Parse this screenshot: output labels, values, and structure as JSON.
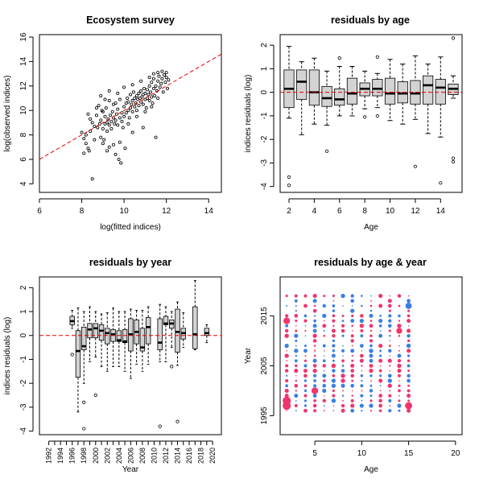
{
  "chart_data": [
    {
      "id": "p1",
      "type": "scatter",
      "title": "Ecosystem survey",
      "xlabel": "log(fitted indices)",
      "ylabel": "log(observed indices)",
      "xlim": [
        6,
        14.6
      ],
      "ylim": [
        3.3,
        16.2
      ],
      "xticks": [
        6,
        8,
        10,
        12,
        14
      ],
      "yticks": [
        4,
        6,
        8,
        10,
        12,
        14,
        16
      ],
      "reference_line": {
        "intercept": 0,
        "slope": 1,
        "style": "dashed",
        "color": "#e00000"
      },
      "points": [
        [
          8.0,
          8.2
        ],
        [
          8.1,
          7.7
        ],
        [
          8.2,
          7.3
        ],
        [
          8.3,
          6.9
        ],
        [
          8.35,
          6.7
        ],
        [
          8.2,
          8.0
        ],
        [
          8.4,
          8.3
        ],
        [
          8.5,
          4.4
        ],
        [
          8.5,
          9.0
        ],
        [
          8.6,
          8.7
        ],
        [
          8.7,
          9.6
        ],
        [
          8.75,
          8.6
        ],
        [
          8.8,
          10.4
        ],
        [
          8.85,
          8.9
        ],
        [
          8.9,
          9.2
        ],
        [
          8.9,
          7.8
        ],
        [
          8.95,
          10.0
        ],
        [
          9.0,
          8.5
        ],
        [
          9.0,
          9.9
        ],
        [
          9.05,
          7.6
        ],
        [
          9.1,
          8.9
        ],
        [
          9.1,
          9.5
        ],
        [
          9.15,
          10.2
        ],
        [
          9.2,
          8.3
        ],
        [
          9.2,
          9.0
        ],
        [
          9.2,
          6.7
        ],
        [
          9.25,
          9.3
        ],
        [
          9.3,
          8.8
        ],
        [
          9.3,
          10.8
        ],
        [
          9.35,
          9.6
        ],
        [
          9.4,
          8.5
        ],
        [
          9.4,
          9.1
        ],
        [
          9.45,
          9.9
        ],
        [
          9.5,
          7.2
        ],
        [
          9.5,
          9.4
        ],
        [
          9.5,
          10.5
        ],
        [
          9.55,
          8.9
        ],
        [
          9.6,
          9.2
        ],
        [
          9.6,
          6.4
        ],
        [
          9.65,
          9.7
        ],
        [
          9.7,
          10.1
        ],
        [
          9.7,
          8.8
        ],
        [
          9.75,
          6.0
        ],
        [
          9.8,
          9.4
        ],
        [
          9.8,
          10.9
        ],
        [
          9.85,
          5.7
        ],
        [
          9.9,
          9.1
        ],
        [
          9.9,
          9.8
        ],
        [
          9.95,
          8.6
        ],
        [
          10.0,
          10.3
        ],
        [
          10.0,
          9.5
        ],
        [
          10.05,
          6.9
        ],
        [
          10.1,
          10.6
        ],
        [
          10.1,
          9.8
        ],
        [
          10.15,
          11.0
        ],
        [
          10.2,
          10.0
        ],
        [
          10.2,
          10.7
        ],
        [
          10.25,
          9.4
        ],
        [
          10.3,
          10.2
        ],
        [
          10.3,
          11.3
        ],
        [
          10.35,
          10.5
        ],
        [
          10.4,
          9.9
        ],
        [
          10.4,
          10.8
        ],
        [
          10.45,
          11.5
        ],
        [
          10.5,
          10.3
        ],
        [
          10.5,
          11.0
        ],
        [
          10.55,
          10.6
        ],
        [
          10.6,
          11.2
        ],
        [
          10.6,
          10.0
        ],
        [
          10.65,
          10.9
        ],
        [
          10.7,
          11.4
        ],
        [
          10.7,
          10.4
        ],
        [
          10.75,
          11.0
        ],
        [
          10.8,
          10.7
        ],
        [
          10.8,
          11.6
        ],
        [
          10.85,
          11.1
        ],
        [
          10.9,
          10.5
        ],
        [
          10.9,
          11.3
        ],
        [
          10.95,
          11.8
        ],
        [
          11.0,
          10.9
        ],
        [
          11.0,
          11.4
        ],
        [
          11.05,
          10.2
        ],
        [
          11.1,
          11.0
        ],
        [
          11.1,
          11.7
        ],
        [
          11.15,
          11.3
        ],
        [
          11.2,
          10.8
        ],
        [
          11.2,
          12.0
        ],
        [
          11.25,
          11.5
        ],
        [
          11.3,
          11.1
        ],
        [
          11.3,
          12.3
        ],
        [
          11.35,
          10.6
        ],
        [
          11.4,
          11.8
        ],
        [
          11.4,
          12.6
        ],
        [
          11.45,
          11.2
        ],
        [
          11.5,
          12.0
        ],
        [
          11.5,
          7.8
        ],
        [
          11.55,
          11.6
        ],
        [
          11.6,
          12.4
        ],
        [
          11.6,
          11.0
        ],
        [
          11.65,
          12.8
        ],
        [
          11.7,
          11.9
        ],
        [
          11.75,
          12.2
        ],
        [
          11.8,
          12.6
        ],
        [
          11.85,
          11.5
        ],
        [
          11.9,
          12.9
        ],
        [
          11.95,
          12.3
        ],
        [
          12.0,
          12.7
        ],
        [
          12.05,
          11.8
        ],
        [
          12.1,
          12.5
        ],
        [
          11.4,
          13.0
        ],
        [
          11.6,
          13.1
        ],
        [
          11.8,
          13.2
        ],
        [
          12.0,
          13.1
        ],
        [
          11.2,
          12.7
        ],
        [
          10.8,
          12.4
        ],
        [
          10.4,
          12.1
        ],
        [
          10.0,
          11.9
        ],
        [
          9.7,
          11.4
        ],
        [
          9.3,
          11.6
        ],
        [
          9.1,
          10.9
        ],
        [
          8.7,
          10.2
        ],
        [
          8.4,
          9.3
        ],
        [
          8.3,
          9.7
        ],
        [
          8.9,
          11.2
        ],
        [
          9.6,
          10.6
        ],
        [
          10.2,
          8.9
        ],
        [
          10.6,
          9.5
        ],
        [
          11.0,
          9.9
        ],
        [
          11.3,
          10.3
        ],
        [
          9.0,
          7.3
        ],
        [
          9.3,
          7.0
        ],
        [
          9.8,
          7.4
        ],
        [
          10.4,
          8.2
        ],
        [
          10.9,
          8.6
        ],
        [
          8.6,
          7.6
        ],
        [
          8.1,
          6.5
        ]
      ]
    },
    {
      "id": "p2",
      "type": "box",
      "title": "residuals by age",
      "xlabel": "Age",
      "ylabel": "indices residuals (log)",
      "xlim": [
        1.3,
        15.7
      ],
      "ylim": [
        -4.25,
        2.45
      ],
      "xticks": [
        2,
        4,
        6,
        8,
        10,
        12,
        14
      ],
      "yticks": [
        -4,
        -3,
        -2,
        -1,
        0,
        1,
        2
      ],
      "reference_line": {
        "y": 0,
        "style": "dashed",
        "color": "#e00000"
      },
      "boxes": [
        {
          "x": 2,
          "min": -1.1,
          "q1": -0.65,
          "med": 0.15,
          "q3": 0.95,
          "max": 1.95,
          "out": [
            -3.6,
            -3.95
          ]
        },
        {
          "x": 3,
          "min": -1.8,
          "q1": -0.3,
          "med": 0.45,
          "q3": 0.95,
          "max": 1.3,
          "out": []
        },
        {
          "x": 4,
          "min": -1.35,
          "q1": -0.55,
          "med": 0.0,
          "q3": 0.95,
          "max": 1.45,
          "out": []
        },
        {
          "x": 5,
          "min": -1.4,
          "q1": -0.6,
          "med": -0.25,
          "q3": 0.25,
          "max": 0.9,
          "out": [
            -2.5
          ]
        },
        {
          "x": 6,
          "min": -1.0,
          "q1": -0.55,
          "med": -0.3,
          "q3": 0.15,
          "max": 1.1,
          "out": [
            1.45
          ]
        },
        {
          "x": 7,
          "min": -1.0,
          "q1": -0.5,
          "med": -0.05,
          "q3": 0.6,
          "max": 1.1,
          "out": []
        },
        {
          "x": 8,
          "min": -0.7,
          "q1": -0.15,
          "med": 0.15,
          "q3": 0.4,
          "max": 0.9,
          "out": [
            -1.05
          ]
        },
        {
          "x": 9,
          "min": -0.65,
          "q1": -0.15,
          "med": 0.15,
          "q3": 0.55,
          "max": 0.8,
          "out": [
            1.5,
            -1.0
          ]
        },
        {
          "x": 10,
          "min": -1.2,
          "q1": -0.5,
          "med": -0.05,
          "q3": 0.6,
          "max": 1.4,
          "out": []
        },
        {
          "x": 11,
          "min": -1.35,
          "q1": -0.45,
          "med": -0.05,
          "q3": 0.45,
          "max": 1.2,
          "out": []
        },
        {
          "x": 12,
          "min": -1.15,
          "q1": -0.5,
          "med": -0.05,
          "q3": 0.5,
          "max": 1.55,
          "out": [
            -3.15
          ]
        },
        {
          "x": 13,
          "min": -1.75,
          "q1": -0.5,
          "med": 0.3,
          "q3": 0.7,
          "max": 1.2,
          "out": []
        },
        {
          "x": 14,
          "min": -1.9,
          "q1": -0.5,
          "med": 0.2,
          "q3": 0.55,
          "max": 1.5,
          "out": [
            -3.85
          ]
        },
        {
          "x": 15,
          "min": -0.25,
          "q1": -0.1,
          "med": 0.15,
          "q3": 0.35,
          "max": 0.7,
          "out": [
            2.3,
            -2.8,
            -2.95
          ]
        }
      ]
    },
    {
      "id": "p3",
      "type": "box",
      "title": "residuals by year",
      "xlabel": "Year",
      "ylabel": "indices residuals (log)",
      "xlim": [
        1990.4,
        2021.5
      ],
      "ylim": [
        -4.15,
        2.45
      ],
      "xticks": [
        1992,
        1993,
        1994,
        1995,
        1996,
        1997,
        1998,
        1999,
        2000,
        2001,
        2002,
        2003,
        2004,
        2005,
        2006,
        2007,
        2008,
        2009,
        2010,
        2011,
        2012,
        2013,
        2014,
        2015,
        2016,
        2017,
        2018,
        2019,
        2020
      ],
      "xticklabels_shown": [
        1992,
        1994,
        1996,
        1998,
        2000,
        2002,
        2004,
        2006,
        2008,
        2010,
        2012,
        2014,
        2016,
        2018,
        2020
      ],
      "yticks": [
        -4,
        -3,
        -2,
        -1,
        0,
        1,
        2
      ],
      "reference_line": {
        "y": 0,
        "style": "dashed",
        "color": "#e00000"
      },
      "boxes": [
        {
          "x": 1996,
          "min": 0.3,
          "q1": 0.45,
          "med": 0.6,
          "q3": 0.8,
          "max": 1.05,
          "out": [
            -0.8
          ]
        },
        {
          "x": 1997,
          "min": -3.2,
          "q1": -1.75,
          "med": -0.65,
          "q3": 0.2,
          "max": 1.15,
          "out": []
        },
        {
          "x": 1998,
          "min": -2.0,
          "q1": -0.6,
          "med": -0.45,
          "q3": 0.35,
          "max": 1.0,
          "out": [
            -3.9,
            -2.8
          ]
        },
        {
          "x": 1999,
          "min": -1.1,
          "q1": -0.1,
          "med": 0.25,
          "q3": 0.5,
          "max": 1.2,
          "out": []
        },
        {
          "x": 2000,
          "min": -0.9,
          "q1": -0.1,
          "med": 0.3,
          "q3": 0.5,
          "max": 1.0,
          "out": [
            -2.5
          ]
        },
        {
          "x": 2001,
          "min": -1.3,
          "q1": -0.2,
          "med": 0.2,
          "q3": 0.45,
          "max": 0.9,
          "out": []
        },
        {
          "x": 2002,
          "min": -1.5,
          "q1": -0.35,
          "med": 0.1,
          "q3": 0.3,
          "max": 0.95,
          "out": []
        },
        {
          "x": 2003,
          "min": -1.3,
          "q1": -0.25,
          "med": 0.05,
          "q3": 0.25,
          "max": 1.15,
          "out": []
        },
        {
          "x": 2004,
          "min": -1.3,
          "q1": -0.25,
          "med": -0.2,
          "q3": 0.2,
          "max": 1.0,
          "out": []
        },
        {
          "x": 2005,
          "min": -1.5,
          "q1": -0.3,
          "med": -0.25,
          "q3": 0.25,
          "max": 1.0,
          "out": []
        },
        {
          "x": 2006,
          "min": -1.8,
          "q1": -0.65,
          "med": 0.05,
          "q3": 0.7,
          "max": 1.1,
          "out": []
        },
        {
          "x": 2007,
          "min": -1.2,
          "q1": -0.35,
          "med": 0.15,
          "q3": 0.65,
          "max": 1.05,
          "out": []
        },
        {
          "x": 2008,
          "min": -1.5,
          "q1": -0.65,
          "med": -0.5,
          "q3": 0.3,
          "max": 1.05,
          "out": []
        },
        {
          "x": 2009,
          "min": -1.2,
          "q1": -0.35,
          "med": 0.35,
          "q3": 0.75,
          "max": 1.2,
          "out": []
        },
        {
          "x": 2011,
          "min": -1.1,
          "q1": -0.6,
          "med": -0.3,
          "q3": 0.7,
          "max": 1.3,
          "out": [
            -3.8
          ]
        },
        {
          "x": 2012,
          "min": -1.1,
          "q1": 0.45,
          "med": 0.5,
          "q3": 0.8,
          "max": 1.2,
          "out": []
        },
        {
          "x": 2013,
          "min": -0.5,
          "q1": 0.3,
          "med": 0.5,
          "q3": 0.65,
          "max": 1.0,
          "out": [
            -1.3
          ]
        },
        {
          "x": 2014,
          "min": -1.25,
          "q1": -0.7,
          "med": 0.15,
          "q3": 1.1,
          "max": 1.4,
          "out": [
            -3.6
          ]
        },
        {
          "x": 2015,
          "min": -0.5,
          "q1": -0.15,
          "med": 0.1,
          "q3": 0.3,
          "max": 0.95,
          "out": []
        },
        {
          "x": 2017,
          "min": -0.6,
          "q1": -0.55,
          "med": 0.05,
          "q3": 1.2,
          "max": 2.3,
          "out": []
        },
        {
          "x": 2019,
          "min": -0.3,
          "q1": 0.0,
          "med": 0.1,
          "q3": 0.3,
          "max": 0.45,
          "out": []
        }
      ]
    },
    {
      "id": "p4",
      "type": "bubble",
      "title": "residuals by age & year",
      "xlabel": "Age",
      "ylabel": "Year",
      "xlim": [
        1.3,
        20.7
      ],
      "ylim": [
        1991.2,
        2022.8
      ],
      "xticks": [
        5,
        10,
        15,
        20
      ],
      "yticks": [
        1995,
        2005,
        2015
      ],
      "positive_color": "#3a7fe6",
      "negative_color": "#f0356e",
      "note": "blue = positive residual, pink = negative; size proportional to |residual|"
    }
  ]
}
